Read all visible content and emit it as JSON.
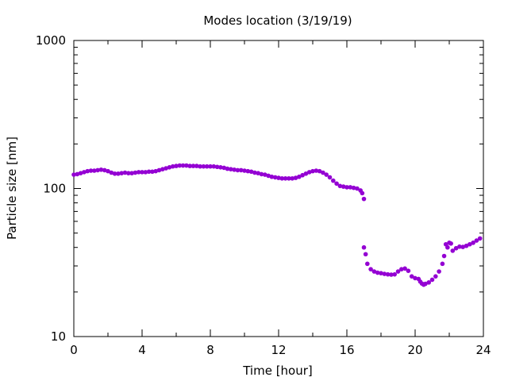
{
  "chart_data": {
    "type": "scatter",
    "title": "Modes location (3/19/19)",
    "xlabel": "Time [hour]",
    "ylabel": "Particle size [nm]",
    "xlim": [
      0,
      24
    ],
    "ylim": [
      10,
      1000
    ],
    "yscale": "log",
    "grid": false,
    "legend": "none",
    "marker_color": "#9400d3",
    "xticks": [
      0,
      4,
      8,
      12,
      16,
      20,
      24
    ],
    "xtick_labels": [
      "0",
      "4",
      "8",
      "12",
      "16",
      "20",
      "24"
    ],
    "yticks": [
      10,
      100,
      1000
    ],
    "ytick_labels": [
      "10",
      "100",
      "1000"
    ],
    "series": [
      {
        "points": [
          [
            0.0,
            124
          ],
          [
            0.2,
            125
          ],
          [
            0.4,
            127
          ],
          [
            0.6,
            129
          ],
          [
            0.8,
            131
          ],
          [
            1.0,
            132
          ],
          [
            1.2,
            132
          ],
          [
            1.4,
            133
          ],
          [
            1.6,
            134
          ],
          [
            1.8,
            133
          ],
          [
            2.0,
            131
          ],
          [
            2.2,
            128
          ],
          [
            2.4,
            126
          ],
          [
            2.6,
            126
          ],
          [
            2.8,
            127
          ],
          [
            3.0,
            128
          ],
          [
            3.2,
            127
          ],
          [
            3.4,
            127
          ],
          [
            3.6,
            128
          ],
          [
            3.8,
            129
          ],
          [
            4.0,
            129
          ],
          [
            4.2,
            129
          ],
          [
            4.4,
            130
          ],
          [
            4.6,
            130
          ],
          [
            4.8,
            131
          ],
          [
            5.0,
            133
          ],
          [
            5.2,
            135
          ],
          [
            5.4,
            137
          ],
          [
            5.6,
            139
          ],
          [
            5.8,
            141
          ],
          [
            6.0,
            142
          ],
          [
            6.2,
            143
          ],
          [
            6.4,
            143
          ],
          [
            6.6,
            143
          ],
          [
            6.8,
            142
          ],
          [
            7.0,
            142
          ],
          [
            7.2,
            142
          ],
          [
            7.4,
            141
          ],
          [
            7.6,
            141
          ],
          [
            7.8,
            141
          ],
          [
            8.0,
            141
          ],
          [
            8.2,
            141
          ],
          [
            8.4,
            140
          ],
          [
            8.6,
            139
          ],
          [
            8.8,
            138
          ],
          [
            9.0,
            136
          ],
          [
            9.2,
            135
          ],
          [
            9.4,
            134
          ],
          [
            9.6,
            133
          ],
          [
            9.8,
            133
          ],
          [
            10.0,
            132
          ],
          [
            10.2,
            131
          ],
          [
            10.4,
            130
          ],
          [
            10.6,
            128
          ],
          [
            10.8,
            127
          ],
          [
            11.0,
            125
          ],
          [
            11.2,
            124
          ],
          [
            11.4,
            122
          ],
          [
            11.6,
            120
          ],
          [
            11.8,
            119
          ],
          [
            12.0,
            118
          ],
          [
            12.2,
            117
          ],
          [
            12.4,
            117
          ],
          [
            12.6,
            117
          ],
          [
            12.8,
            117
          ],
          [
            13.0,
            118
          ],
          [
            13.2,
            120
          ],
          [
            13.4,
            123
          ],
          [
            13.6,
            126
          ],
          [
            13.8,
            129
          ],
          [
            14.0,
            131
          ],
          [
            14.2,
            132
          ],
          [
            14.4,
            131
          ],
          [
            14.6,
            128
          ],
          [
            14.8,
            124
          ],
          [
            15.0,
            119
          ],
          [
            15.2,
            113
          ],
          [
            15.4,
            108
          ],
          [
            15.6,
            104
          ],
          [
            15.8,
            103
          ],
          [
            16.0,
            102
          ],
          [
            16.2,
            102
          ],
          [
            16.4,
            101
          ],
          [
            16.6,
            100
          ],
          [
            16.8,
            97
          ],
          [
            16.9,
            93
          ],
          [
            17.0,
            85
          ],
          [
            17.0,
            40
          ],
          [
            17.1,
            36
          ],
          [
            17.2,
            31
          ],
          [
            17.4,
            28.5
          ],
          [
            17.6,
            27.5
          ],
          [
            17.8,
            27
          ],
          [
            18.0,
            26.8
          ],
          [
            18.2,
            26.5
          ],
          [
            18.4,
            26.3
          ],
          [
            18.6,
            26.2
          ],
          [
            18.8,
            26.3
          ],
          [
            19.0,
            27.5
          ],
          [
            19.2,
            28.5
          ],
          [
            19.4,
            28.8
          ],
          [
            19.6,
            27.8
          ],
          [
            19.8,
            25.5
          ],
          [
            20.0,
            24.8
          ],
          [
            20.2,
            24.5
          ],
          [
            20.3,
            23.5
          ],
          [
            20.4,
            22.8
          ],
          [
            20.5,
            22.4
          ],
          [
            20.6,
            22.7
          ],
          [
            20.8,
            23.2
          ],
          [
            21.0,
            24.2
          ],
          [
            21.2,
            25.5
          ],
          [
            21.4,
            27.5
          ],
          [
            21.6,
            31
          ],
          [
            21.7,
            35
          ],
          [
            21.8,
            42
          ],
          [
            21.9,
            40
          ],
          [
            22.0,
            43
          ],
          [
            22.1,
            42.5
          ],
          [
            22.2,
            38
          ],
          [
            22.4,
            39.5
          ],
          [
            22.6,
            40.5
          ],
          [
            22.8,
            40.3
          ],
          [
            23.0,
            41
          ],
          [
            23.2,
            42
          ],
          [
            23.4,
            43
          ],
          [
            23.6,
            44.5
          ],
          [
            23.8,
            46
          ]
        ]
      }
    ]
  }
}
